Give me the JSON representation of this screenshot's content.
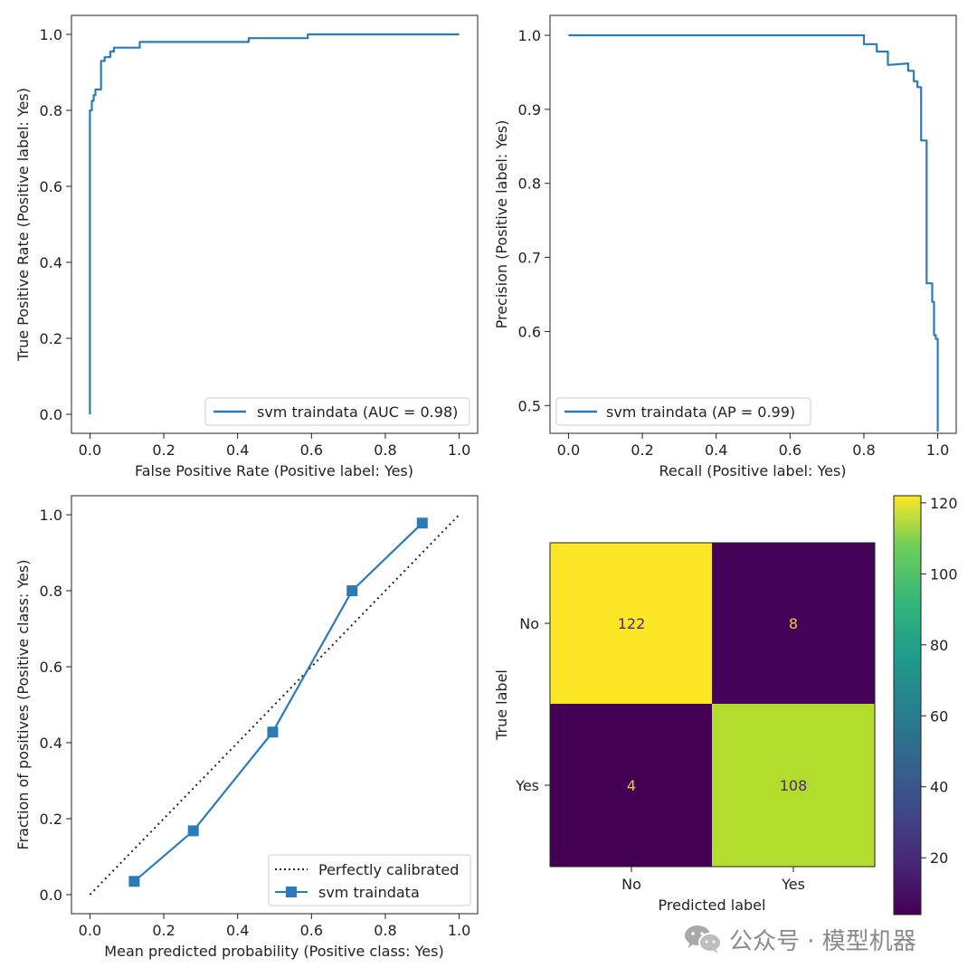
{
  "colors": {
    "series": "#2b7bba",
    "axis": "#222222",
    "diag": "#222222",
    "cell_text_dark": "#e8d12a",
    "cell_text_light": "#4b2a73"
  },
  "chart_data": [
    {
      "type": "line",
      "name": "roc",
      "xlabel": "False Positive Rate (Positive label: Yes)",
      "ylabel": "True Positive Rate (Positive label: Yes)",
      "xlim": [
        -0.05,
        1.05
      ],
      "ylim": [
        -0.05,
        1.05
      ],
      "xticks": [
        "0.0",
        "0.2",
        "0.4",
        "0.6",
        "0.8",
        "1.0"
      ],
      "yticks": [
        "0.0",
        "0.2",
        "0.4",
        "0.6",
        "0.8",
        "1.0"
      ],
      "legend_position": "bottom-right",
      "legend": [
        "svm traindata (AUC = 0.98)"
      ],
      "series": [
        {
          "name": "svm traindata",
          "x": [
            0,
            0,
            0.005,
            0.005,
            0.01,
            0.01,
            0.015,
            0.015,
            0.03,
            0.03,
            0.04,
            0.04,
            0.055,
            0.055,
            0.065,
            0.065,
            0.135,
            0.135,
            0.43,
            0.43,
            0.59,
            0.59,
            1.0
          ],
          "y": [
            0,
            0.8,
            0.8,
            0.825,
            0.825,
            0.84,
            0.84,
            0.855,
            0.855,
            0.93,
            0.93,
            0.94,
            0.94,
            0.955,
            0.955,
            0.965,
            0.965,
            0.98,
            0.98,
            0.99,
            0.99,
            1.0,
            1.0
          ]
        }
      ]
    },
    {
      "type": "line",
      "name": "pr",
      "xlabel": "Recall (Positive label: Yes)",
      "ylabel": "Precision (Positive label: Yes)",
      "xlim": [
        -0.05,
        1.05
      ],
      "ylim": [
        0.4625,
        1.0269
      ],
      "xticks": [
        "0.0",
        "0.2",
        "0.4",
        "0.6",
        "0.8",
        "1.0"
      ],
      "yticks": [
        "0.5",
        "0.6",
        "0.7",
        "0.8",
        "0.9",
        "1.0"
      ],
      "legend_position": "bottom-left",
      "legend": [
        "svm traindata (AP = 0.99)"
      ],
      "series": [
        {
          "name": "svm traindata",
          "x": [
            0,
            0.8,
            0.8,
            0.835,
            0.835,
            0.865,
            0.865,
            0.92,
            0.92,
            0.935,
            0.935,
            0.945,
            0.945,
            0.955,
            0.955,
            0.97,
            0.97,
            0.985,
            0.985,
            0.99,
            0.99,
            0.995,
            0.995,
            1.0,
            1.0
          ],
          "y": [
            1.0,
            1.0,
            0.988,
            0.988,
            0.978,
            0.978,
            0.96,
            0.962,
            0.952,
            0.952,
            0.938,
            0.938,
            0.93,
            0.93,
            0.858,
            0.858,
            0.665,
            0.665,
            0.64,
            0.64,
            0.595,
            0.595,
            0.59,
            0.59,
            0.465
          ]
        }
      ]
    },
    {
      "type": "line",
      "name": "calibration",
      "xlabel": "Mean predicted probability (Positive class: Yes)",
      "ylabel": "Fraction of positives (Positive class: Yes)",
      "xlim": [
        -0.05,
        1.05
      ],
      "ylim": [
        -0.05,
        1.05
      ],
      "xticks": [
        "0.0",
        "0.2",
        "0.4",
        "0.6",
        "0.8",
        "1.0"
      ],
      "yticks": [
        "0.0",
        "0.2",
        "0.4",
        "0.6",
        "0.8",
        "1.0"
      ],
      "legend_position": "bottom-right",
      "legend": [
        "Perfectly calibrated",
        "svm traindata"
      ],
      "series": [
        {
          "name": "Perfectly calibrated",
          "style": "dotted",
          "x": [
            0,
            1
          ],
          "y": [
            0,
            1
          ]
        },
        {
          "name": "svm traindata",
          "marker": "square",
          "x": [
            0.12,
            0.28,
            0.495,
            0.71,
            0.9
          ],
          "y": [
            0.035,
            0.168,
            0.428,
            0.8,
            0.978
          ]
        }
      ]
    },
    {
      "type": "heatmap",
      "name": "confusion_matrix",
      "xlabel": "Predicted label",
      "ylabel": "True label",
      "x_categories": [
        "No",
        "Yes"
      ],
      "y_categories": [
        "No",
        "Yes"
      ],
      "values": [
        [
          122,
          8
        ],
        [
          4,
          108
        ]
      ],
      "colorbar_range": [
        4,
        122
      ],
      "colorbar_ticks": [
        "20",
        "40",
        "60",
        "80",
        "100",
        "120"
      ],
      "colormap": "viridis"
    }
  ],
  "watermark": {
    "text": "公众号 · 模型机器"
  }
}
